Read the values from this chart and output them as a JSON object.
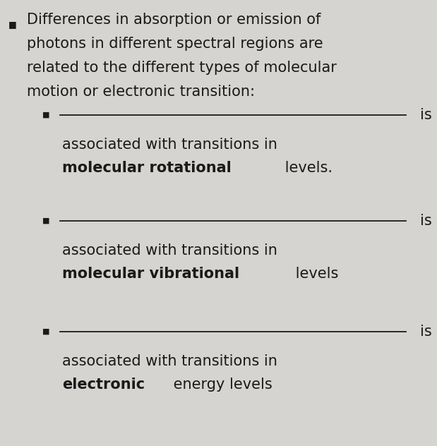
{
  "bg_color": "#d6d4d0",
  "text_color": "#1a1a1a",
  "bullet_color": "#1a1a1a",
  "main_fontsize": 15.0,
  "sub_fontsize": 15.0,
  "items": [
    {
      "plain_part": "associated with transitions in",
      "bold_part": "molecular rotational",
      "tail_part": " levels."
    },
    {
      "plain_part": "associated with transitions in",
      "bold_part": "molecular vibrational",
      "tail_part": " levels"
    },
    {
      "plain_part": "associated with transitions in",
      "bold_part": "electronic",
      "tail_part": " energy levels"
    }
  ],
  "main_text_lines": [
    "Differences in absorption or emission of",
    "photons in different spectral regions are",
    "related to the different types of molecular",
    "motion or electronic transition:"
  ]
}
